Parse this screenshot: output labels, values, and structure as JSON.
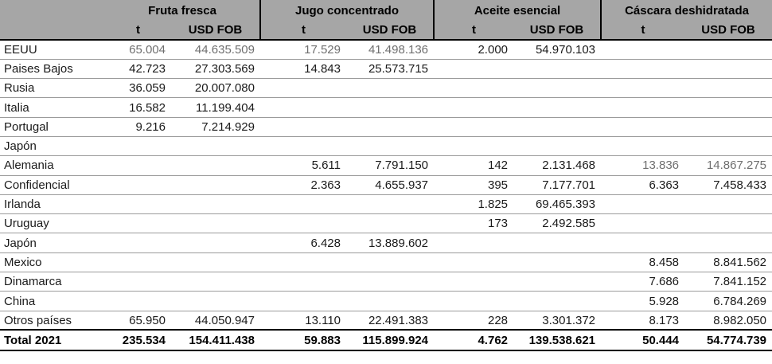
{
  "chart_data": {
    "type": "table",
    "title": "",
    "groups": [
      "Fruta fresca",
      "Jugo concentrado",
      "Aceite esencial",
      "Cáscara deshidratada"
    ],
    "subheaders": {
      "t": "t",
      "usd": "USD FOB"
    },
    "columns_per_group": [
      "t",
      "USD FOB"
    ],
    "rows": [
      {
        "country": "EEUU",
        "values": [
          "65.004",
          "44.635.509",
          "17.529",
          "41.498.136",
          "2.000",
          "54.970.103",
          "",
          ""
        ],
        "gray": [
          0,
          1,
          2,
          3
        ]
      },
      {
        "country": "Paises Bajos",
        "values": [
          "42.723",
          "27.303.569",
          "14.843",
          "25.573.715",
          "",
          "",
          "",
          ""
        ]
      },
      {
        "country": "Rusia",
        "values": [
          "36.059",
          "20.007.080",
          "",
          "",
          "",
          "",
          "",
          ""
        ]
      },
      {
        "country": "Italia",
        "values": [
          "16.582",
          "11.199.404",
          "",
          "",
          "",
          "",
          "",
          ""
        ]
      },
      {
        "country": "Portugal",
        "values": [
          "9.216",
          "7.214.929",
          "",
          "",
          "",
          "",
          "",
          ""
        ]
      },
      {
        "country": "Japón",
        "values": [
          "",
          "",
          "",
          "",
          "",
          "",
          "",
          ""
        ]
      },
      {
        "country": "Alemania",
        "values": [
          "",
          "",
          "5.611",
          "7.791.150",
          "142",
          "2.131.468",
          "13.836",
          "14.867.275"
        ],
        "gray": [
          6,
          7
        ]
      },
      {
        "country": "Confidencial",
        "values": [
          "",
          "",
          "2.363",
          "4.655.937",
          "395",
          "7.177.701",
          "6.363",
          "7.458.433"
        ]
      },
      {
        "country": "Irlanda",
        "values": [
          "",
          "",
          "",
          "",
          "1.825",
          "69.465.393",
          "",
          ""
        ]
      },
      {
        "country": "Uruguay",
        "values": [
          "",
          "",
          "",
          "",
          "173",
          "2.492.585",
          "",
          ""
        ]
      },
      {
        "country": "Japón",
        "values": [
          "",
          "",
          "6.428",
          "13.889.602",
          "",
          "",
          "",
          ""
        ]
      },
      {
        "country": "Mexico",
        "values": [
          "",
          "",
          "",
          "",
          "",
          "",
          "8.458",
          "8.841.562"
        ]
      },
      {
        "country": "Dinamarca",
        "values": [
          "",
          "",
          "",
          "",
          "",
          "",
          "7.686",
          "7.841.152"
        ]
      },
      {
        "country": "China",
        "values": [
          "",
          "",
          "",
          "",
          "",
          "",
          "5.928",
          "6.784.269"
        ]
      },
      {
        "country": "Otros países",
        "values": [
          "65.950",
          "44.050.947",
          "13.110",
          "22.491.383",
          "228",
          "3.301.372",
          "8.173",
          "8.982.050"
        ]
      },
      {
        "country": "Total 2021",
        "values": [
          "235.534",
          "154.411.438",
          "59.883",
          "115.899.924",
          "4.762",
          "139.538.621",
          "50.444",
          "54.774.739"
        ],
        "total": true
      }
    ],
    "colors": {
      "header_bg": "#a6a6a6",
      "gray_text": "#6f6f6f",
      "text": "#1a1a1a",
      "row_line": "#9b9b9b",
      "strong_line": "#000000"
    }
  }
}
